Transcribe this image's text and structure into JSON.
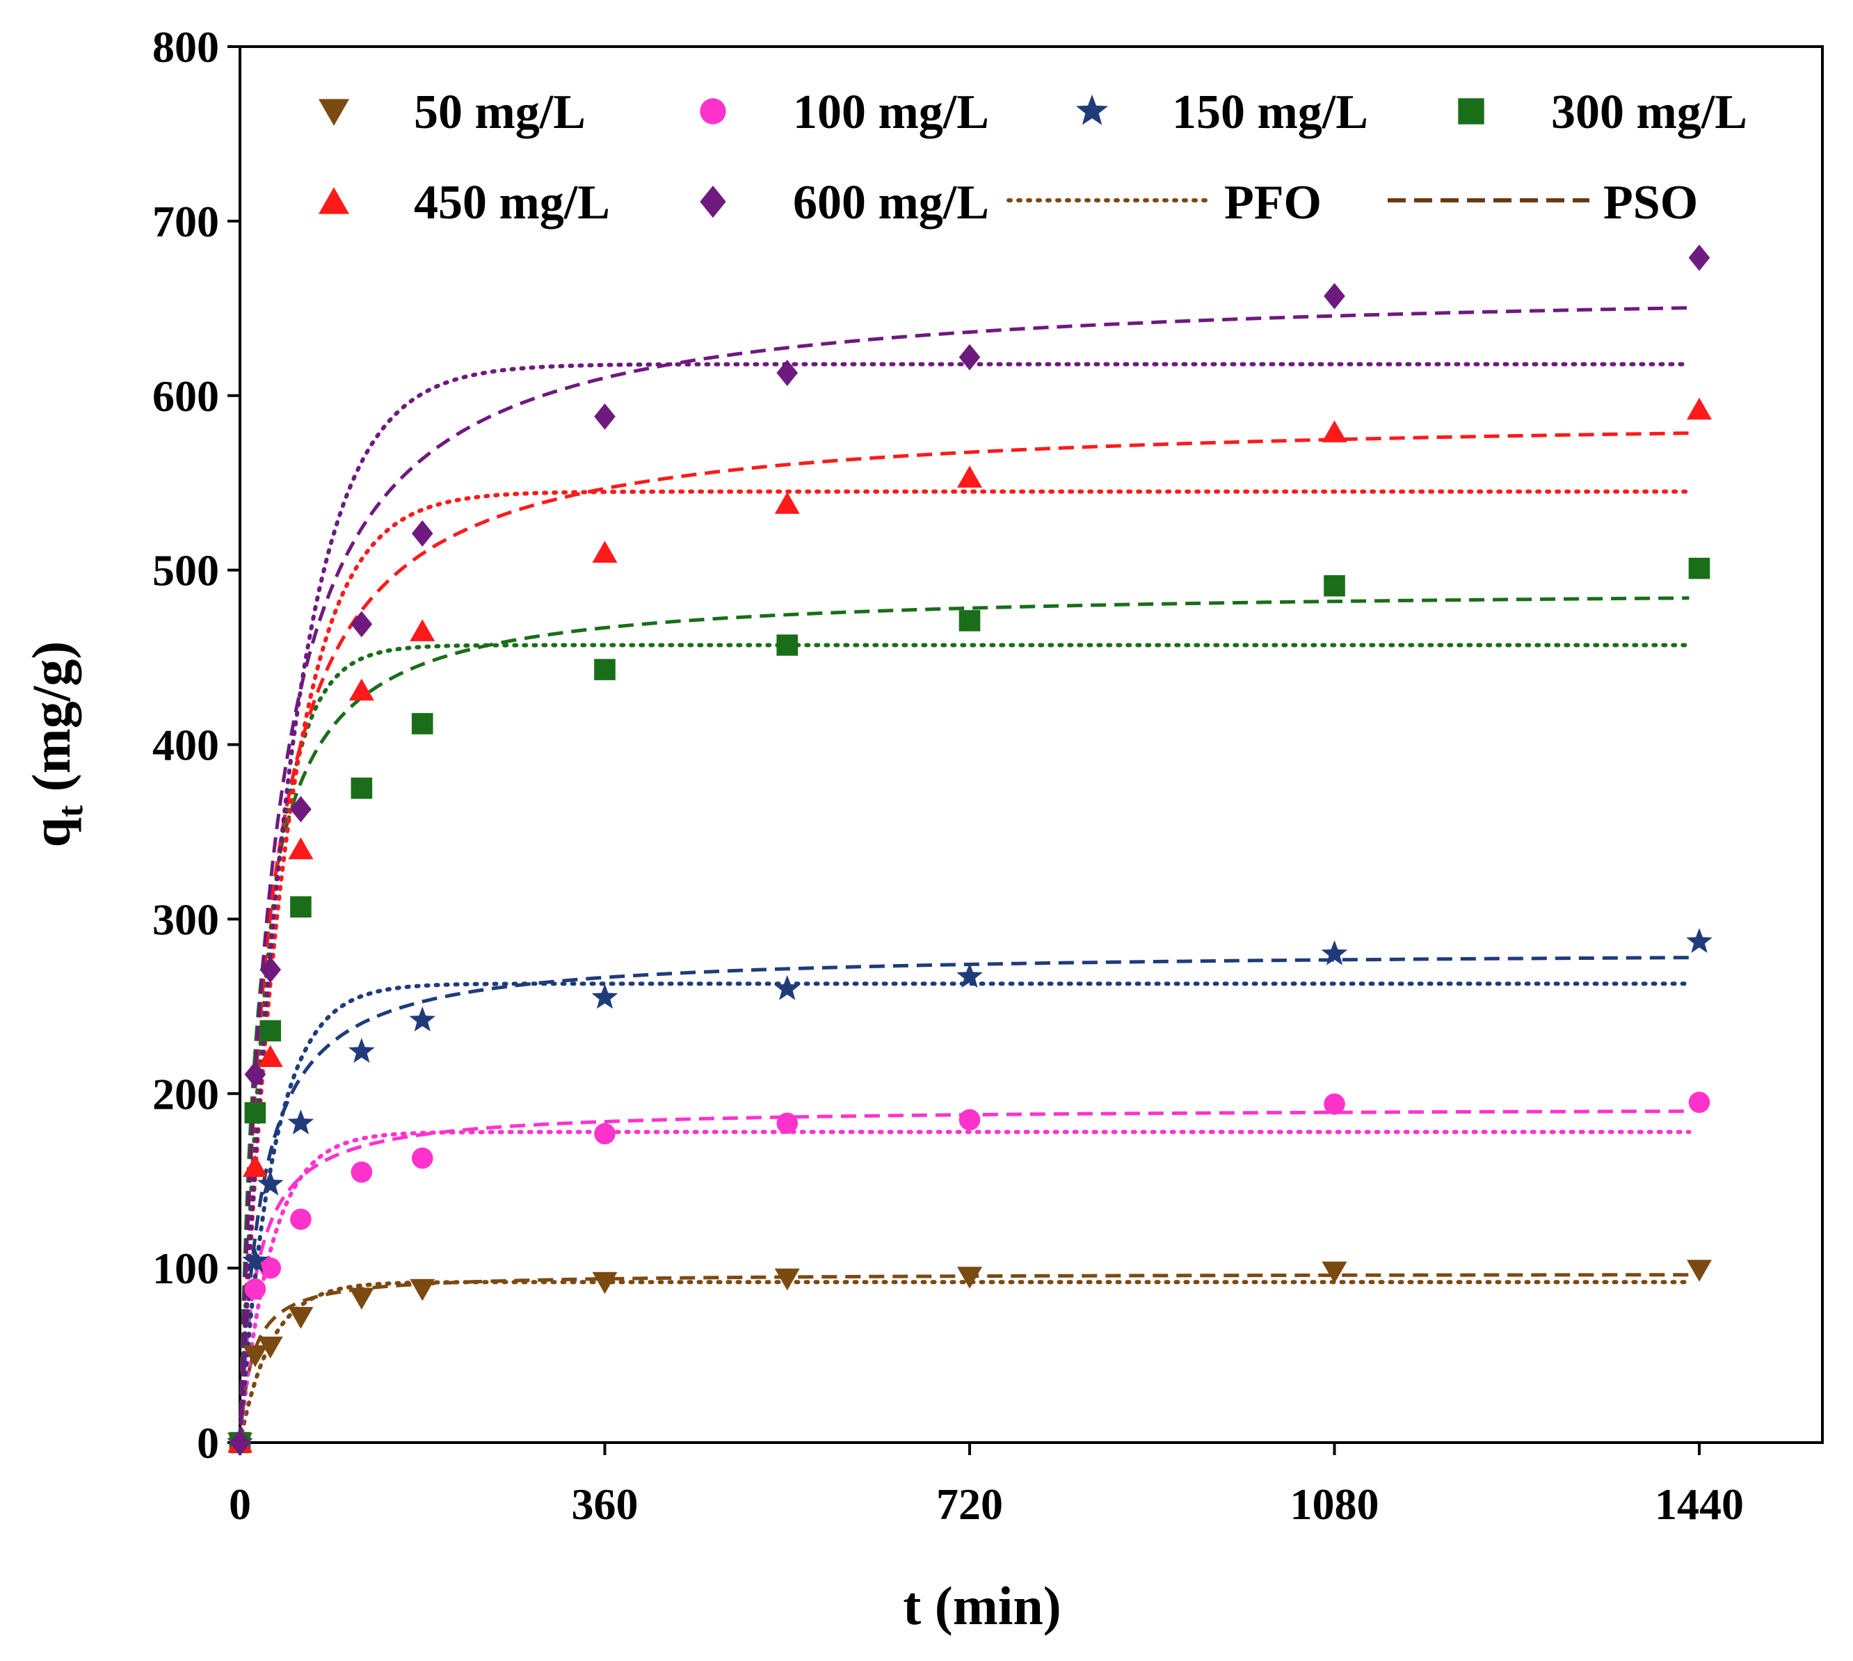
{
  "chart_data": {
    "type": "scatter",
    "title": "",
    "xlabel": "t (min)",
    "ylabel_main": "q",
    "ylabel_sub": "t",
    "ylabel_rest": " (mg/g)",
    "xlim": [
      0,
      1560
    ],
    "ylim": [
      0,
      800
    ],
    "xticks": [
      "0",
      "360",
      "720",
      "1080",
      "1440"
    ],
    "xtick_values": [
      0,
      360,
      720,
      1080,
      1440
    ],
    "yticks": [
      "0",
      "100",
      "200",
      "300",
      "400",
      "500",
      "600",
      "700",
      "800"
    ],
    "ytick_values": [
      0,
      100,
      200,
      300,
      400,
      500,
      600,
      700,
      800
    ],
    "x": [
      0,
      15,
      30,
      60,
      120,
      180,
      360,
      540,
      720,
      1080,
      1440
    ],
    "series": [
      {
        "name": "50 mg/L",
        "color": "#7b4a12",
        "marker": "triangle-down",
        "values": [
          0,
          50,
          55,
          72,
          83,
          88,
          92,
          94,
          95,
          98,
          99
        ],
        "pfo": {
          "qe": 92,
          "k": 0.032
        },
        "pso": {
          "qe": 97,
          "k": 0.00085
        }
      },
      {
        "name": "100 mg/L",
        "color": "#ff33cc",
        "marker": "circle",
        "values": [
          0,
          88,
          100,
          128,
          155,
          163,
          177,
          183,
          185,
          194,
          195
        ],
        "pfo": {
          "qe": 178,
          "k": 0.032
        },
        "pso": {
          "qe": 192,
          "k": 0.00033
        }
      },
      {
        "name": "150 mg/L",
        "color": "#1f3b7a",
        "marker": "star",
        "values": [
          0,
          104,
          148,
          183,
          224,
          242,
          255,
          260,
          267,
          280,
          287
        ],
        "pfo": {
          "qe": 263,
          "k": 0.03
        },
        "pso": {
          "qe": 282,
          "k": 0.00017
        }
      },
      {
        "name": "300 mg/L",
        "color": "#1a6e1a",
        "marker": "square",
        "values": [
          0,
          189,
          236,
          307,
          375,
          412,
          443,
          457,
          471,
          491,
          501
        ],
        "pfo": {
          "qe": 457,
          "k": 0.034
        },
        "pso": {
          "qe": 490,
          "k": 0.000115
        }
      },
      {
        "name": "450 mg/L",
        "color": "#ff1a1a",
        "marker": "triangle-up",
        "values": [
          0,
          158,
          221,
          340,
          431,
          465,
          510,
          538,
          553,
          579,
          592
        ],
        "pfo": {
          "qe": 545,
          "k": 0.022
        },
        "pso": {
          "qe": 590,
          "k": 5.95e-05
        }
      },
      {
        "name": "600 mg/L",
        "color": "#6e1a7e",
        "marker": "diamond",
        "values": [
          0,
          211,
          271,
          363,
          469,
          521,
          588,
          613,
          622,
          657,
          679
        ],
        "pfo": {
          "qe": 618,
          "k": 0.02
        },
        "pso": {
          "qe": 665,
          "k": 4.65e-05
        }
      }
    ],
    "fit_lines": [
      {
        "name": "PFO",
        "style": "dotted",
        "color": "#7b4a12"
      },
      {
        "name": "PSO",
        "style": "dashed",
        "color": "#6b3a10"
      }
    ]
  }
}
